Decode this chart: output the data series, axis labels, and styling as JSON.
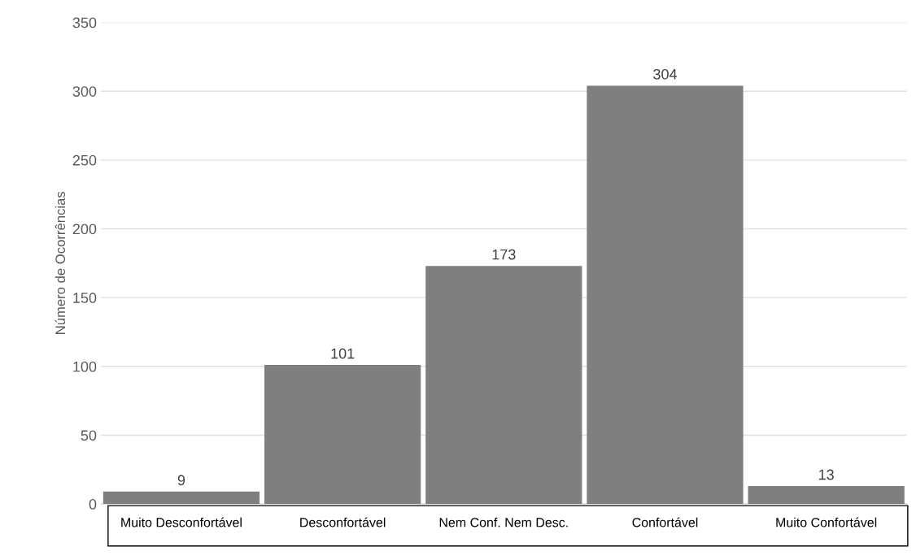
{
  "chart_data": {
    "type": "bar",
    "ylabel": "Número de Ocorrências",
    "categories": [
      "Muito Desconfortável",
      "Desconfortável",
      "Nem Conf. Nem Desc.",
      "Confortável",
      "Muito Confortável"
    ],
    "values": [
      9,
      101,
      173,
      304,
      13
    ],
    "color": "#7f7f7f",
    "ylim": [
      0,
      350
    ],
    "yticks": [
      0,
      50,
      100,
      150,
      200,
      250,
      300,
      350
    ],
    "grid": "y",
    "data_labels": true
  }
}
